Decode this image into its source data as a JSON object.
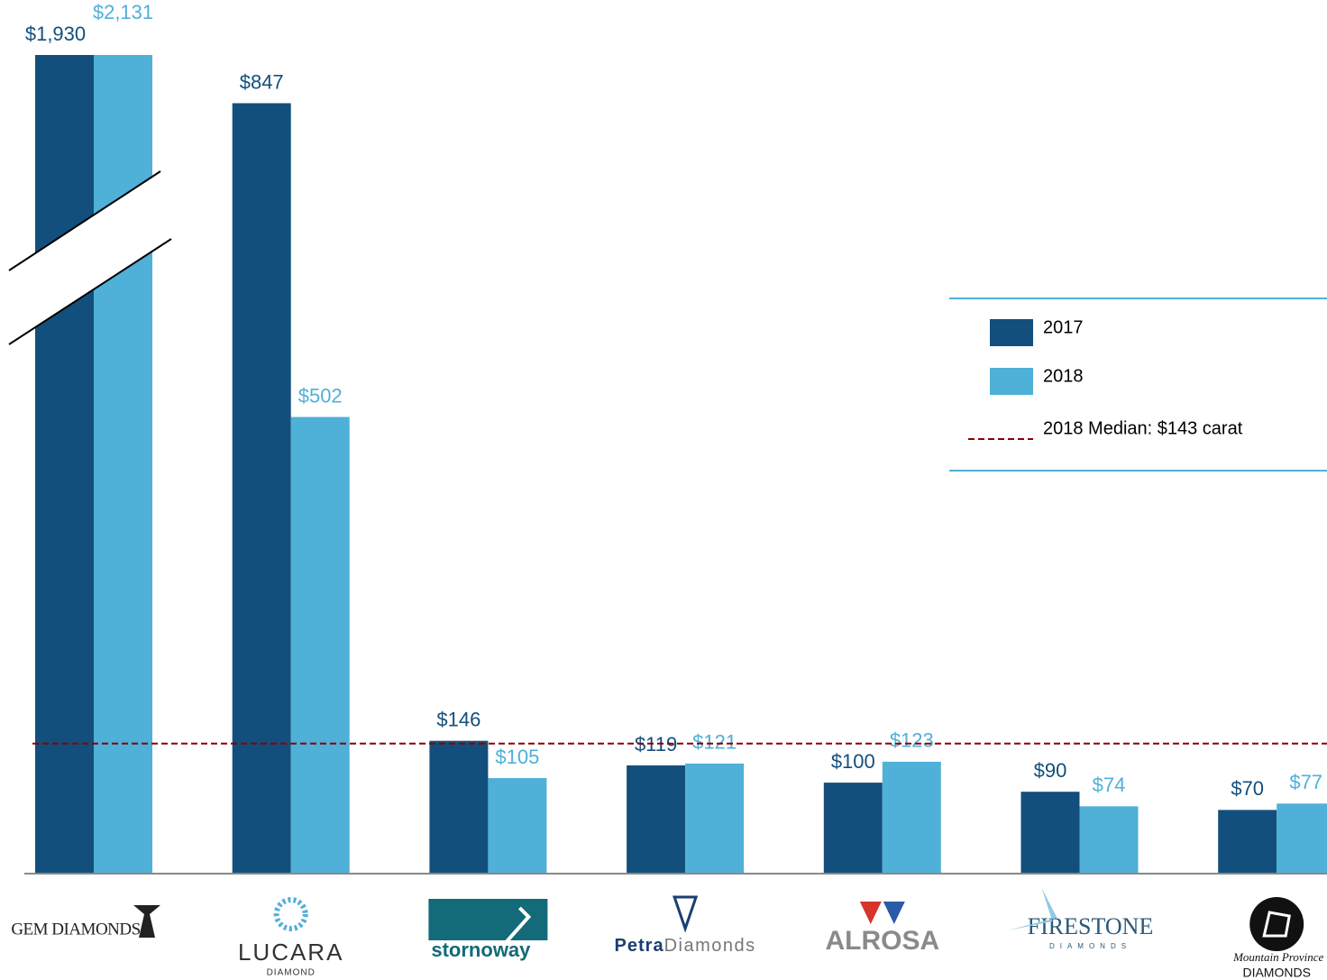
{
  "chart_data": {
    "type": "bar",
    "categories": [
      [
        "GEM DIAMONDS"
      ],
      [
        "LUCARA",
        "DIAMOND"
      ],
      [
        "stornoway"
      ],
      [
        "Petra",
        "Diamonds"
      ],
      [
        "ALROSA"
      ],
      [
        "FIRESTONE",
        "DIAMONDS"
      ],
      [
        "Mountain Province",
        "DIAMONDS"
      ]
    ],
    "series": [
      {
        "name": "2017",
        "color": "#134f7c",
        "values": [
          1930,
          847,
          146,
          119,
          100,
          90,
          70
        ],
        "value_labels": [
          "$1,930",
          "$847",
          "$146",
          "$119",
          "$100",
          "$90",
          "$70"
        ]
      },
      {
        "name": "2018",
        "color": "#4fb0d8",
        "values": [
          2131,
          502,
          105,
          121,
          123,
          74,
          77
        ],
        "value_labels": [
          "$2,131",
          "$502",
          "$105",
          "$121",
          "$123",
          "$74",
          "$77"
        ]
      }
    ],
    "median": {
      "name": "2018 Median: $143 carat",
      "value": 143,
      "color": "#8b0000"
    },
    "ylim": [
      0,
      900
    ],
    "axis_break": true
  }
}
